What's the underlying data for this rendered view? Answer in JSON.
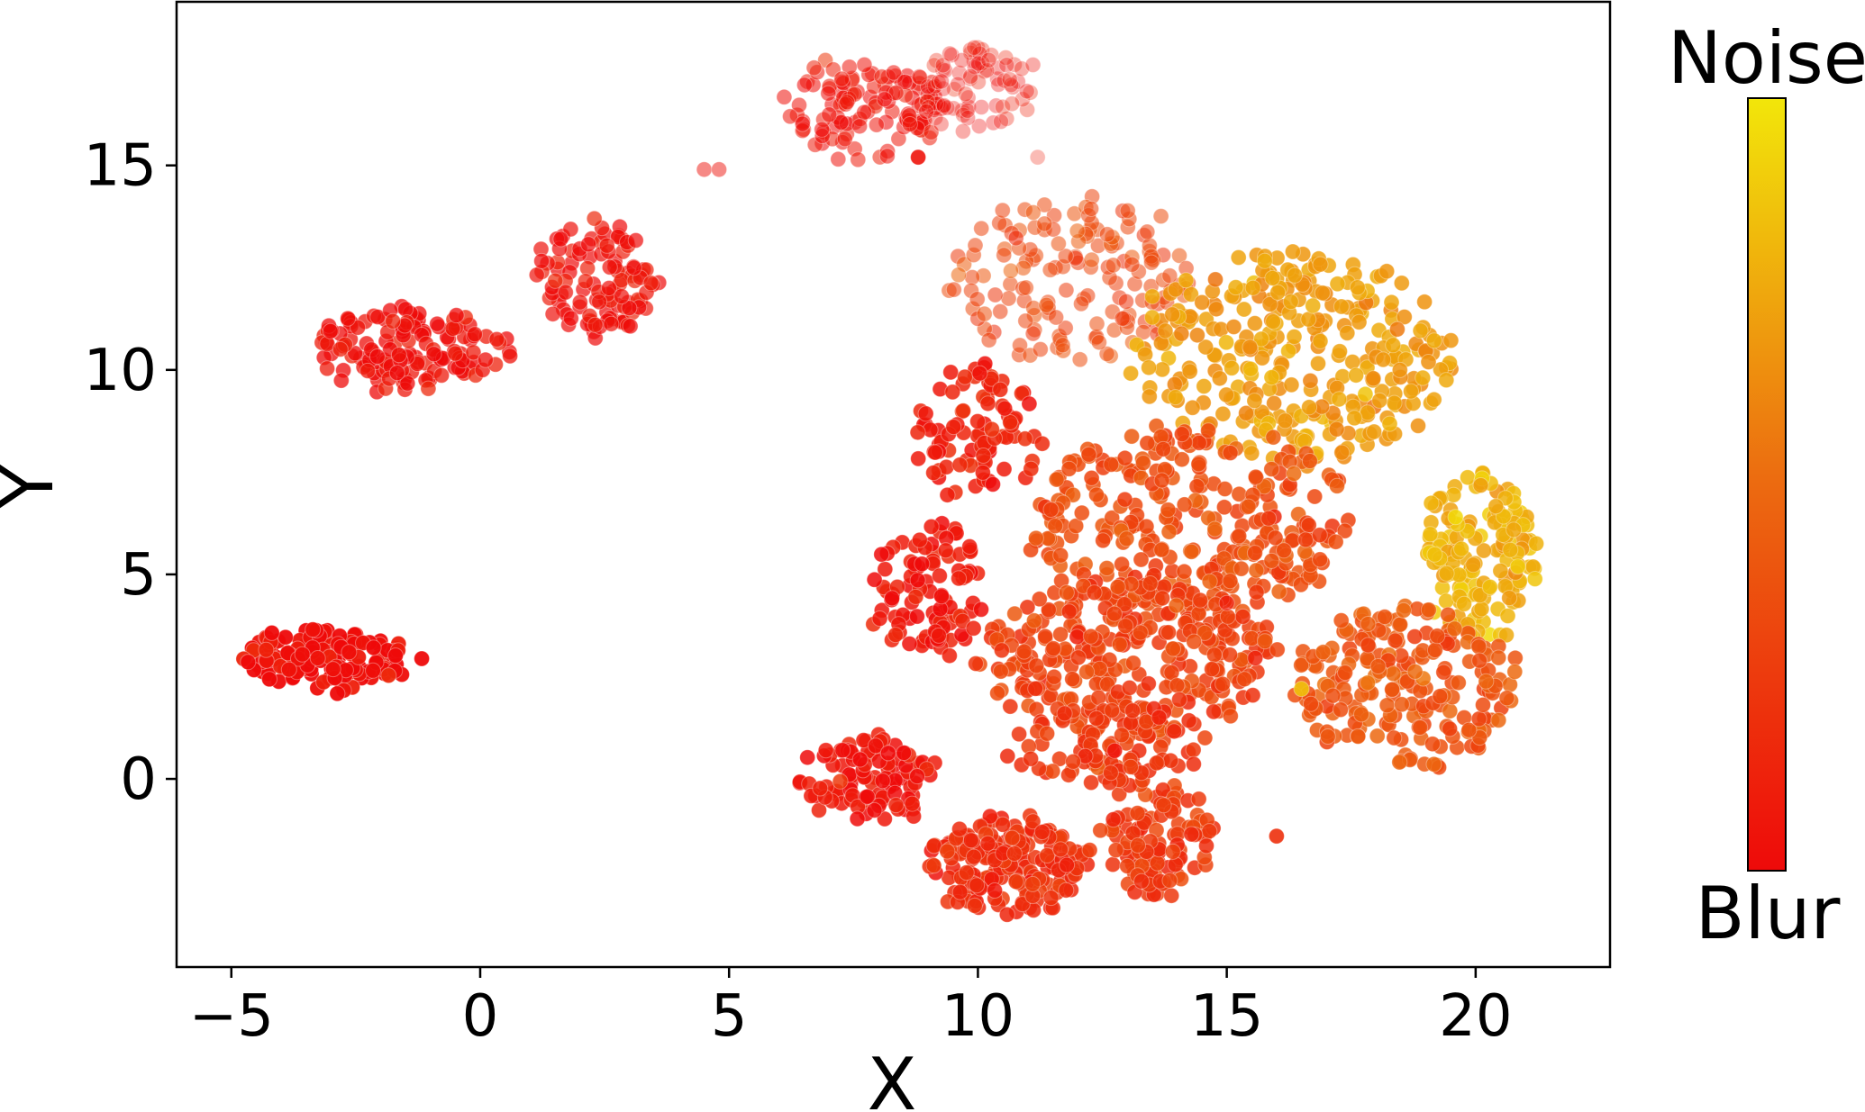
{
  "chart_data": {
    "type": "scatter",
    "title": "",
    "xlabel": "X",
    "ylabel": "Y",
    "xlim": [
      -6.1,
      22.7
    ],
    "ylim": [
      -4.6,
      19.0
    ],
    "xticks": [
      -5,
      0,
      5,
      10,
      15,
      20
    ],
    "xtick_labels": [
      "−5",
      "0",
      "5",
      "10",
      "15",
      "20"
    ],
    "yticks": [
      0,
      5,
      10,
      15
    ],
    "ytick_labels": [
      "0",
      "5",
      "10",
      "15"
    ],
    "grid": false,
    "legend": "none",
    "colorbar": {
      "top_label": "Noise",
      "bottom_label": "Blur",
      "colormap": "autumn",
      "color_low": "#ee0a0a",
      "color_high": "#f2e60a"
    },
    "clusters": [
      {
        "cx": -3.0,
        "cy": 2.95,
        "rx": 1.8,
        "ry": 0.75,
        "n": 150,
        "t": 0.02,
        "alpha": 0.95
      },
      {
        "cx": -1.5,
        "cy": 10.5,
        "rx": 2.0,
        "ry": 0.95,
        "n": 140,
        "t": 0.03,
        "alpha": 0.75
      },
      {
        "cx": 2.3,
        "cy": 12.2,
        "rx": 1.25,
        "ry": 1.45,
        "n": 110,
        "t": 0.03,
        "alpha": 0.7
      },
      {
        "cx": 7.7,
        "cy": 16.4,
        "rx": 1.6,
        "ry": 1.2,
        "n": 120,
        "t": 0.04,
        "alpha": 0.55
      },
      {
        "cx": 10.0,
        "cy": 16.9,
        "rx": 1.2,
        "ry": 1.05,
        "n": 80,
        "t": 0.05,
        "alpha": 0.35
      },
      {
        "cx": 11.8,
        "cy": 12.2,
        "rx": 2.5,
        "ry": 2.0,
        "n": 160,
        "t": 0.33,
        "alpha": 0.55
      },
      {
        "cx": 16.3,
        "cy": 10.3,
        "rx": 3.2,
        "ry": 2.6,
        "n": 320,
        "t": 0.7,
        "alpha": 0.85
      },
      {
        "cx": 10.0,
        "cy": 8.5,
        "rx": 1.3,
        "ry": 1.7,
        "n": 90,
        "t": 0.12,
        "alpha": 0.85
      },
      {
        "cx": 14.3,
        "cy": 6.3,
        "rx": 3.3,
        "ry": 2.3,
        "n": 300,
        "t": 0.35,
        "alpha": 0.85
      },
      {
        "cx": 20.1,
        "cy": 5.4,
        "rx": 1.2,
        "ry": 2.1,
        "n": 150,
        "t": 0.78,
        "alpha": 0.85
      },
      {
        "cx": 9.0,
        "cy": 4.6,
        "rx": 1.1,
        "ry": 1.7,
        "n": 100,
        "t": 0.07,
        "alpha": 0.85
      },
      {
        "cx": 13.0,
        "cy": 3.0,
        "rx": 3.0,
        "ry": 2.0,
        "n": 300,
        "t": 0.28,
        "alpha": 0.85
      },
      {
        "cx": 18.6,
        "cy": 2.3,
        "rx": 2.3,
        "ry": 2.0,
        "n": 210,
        "t": 0.4,
        "alpha": 0.85
      },
      {
        "cx": 7.8,
        "cy": 0.0,
        "rx": 1.4,
        "ry": 1.0,
        "n": 100,
        "t": 0.05,
        "alpha": 0.85
      },
      {
        "cx": 10.6,
        "cy": -2.1,
        "rx": 1.7,
        "ry": 1.15,
        "n": 190,
        "t": 0.18,
        "alpha": 0.85
      },
      {
        "cx": 13.6,
        "cy": -1.4,
        "rx": 1.0,
        "ry": 1.5,
        "n": 110,
        "t": 0.25,
        "alpha": 0.85
      },
      {
        "cx": 12.6,
        "cy": 0.8,
        "rx": 2.0,
        "ry": 1.0,
        "n": 90,
        "t": 0.24,
        "alpha": 0.85
      }
    ],
    "outliers": [
      {
        "x": 4.5,
        "y": 14.9,
        "t": 0.05,
        "alpha": 0.5
      },
      {
        "x": 4.8,
        "y": 14.9,
        "t": 0.05,
        "alpha": 0.5
      },
      {
        "x": 11.2,
        "y": 15.2,
        "t": 0.1,
        "alpha": 0.3
      },
      {
        "x": 8.8,
        "y": 15.2,
        "t": 0.05,
        "alpha": 0.9
      },
      {
        "x": 16.0,
        "y": -1.4,
        "t": 0.2,
        "alpha": 0.9
      },
      {
        "x": 15.0,
        "y": 4.3,
        "t": 0.05,
        "alpha": 0.6
      },
      {
        "x": 16.5,
        "y": 2.2,
        "t": 0.85,
        "alpha": 0.9
      }
    ]
  }
}
